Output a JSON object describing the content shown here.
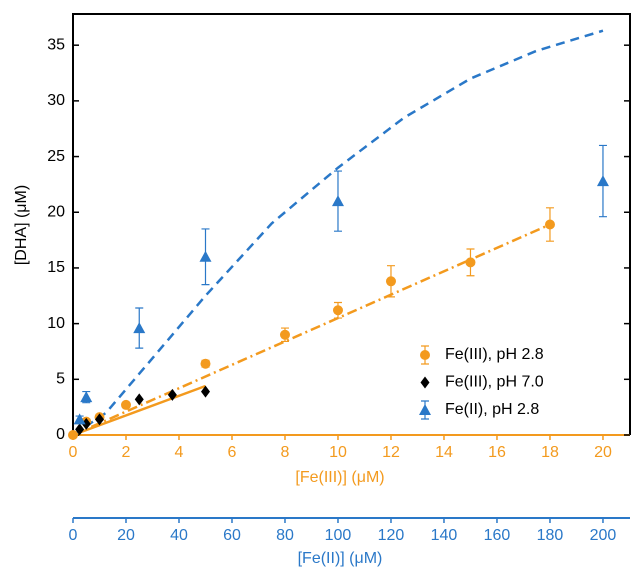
{
  "chart_data": {
    "type": "scatter",
    "ylabel": "[DHA] (μM)",
    "xlabel": "[Fe(III)] (μM)",
    "x2label": "[Fe(II)] (μM)",
    "ylim": [
      0,
      37.8
    ],
    "yticks": [
      0,
      5,
      10,
      15,
      20,
      25,
      30,
      35
    ],
    "xlim": [
      0,
      21.02
    ],
    "xticks": [
      0,
      2,
      4,
      6,
      8,
      10,
      12,
      14,
      16,
      18,
      20
    ],
    "x2lim": [
      0,
      210.2
    ],
    "x2ticks": [
      0,
      20,
      40,
      60,
      80,
      100,
      120,
      140,
      160,
      180,
      200
    ],
    "xcolor": "#f39a1e",
    "x2color": "#2a78c8",
    "legend": "lower right",
    "series": [
      {
        "name": "Fe(III), pH 2.8",
        "color": "#f39a1e",
        "marker": "circle",
        "axis": "x",
        "x": [
          0,
          0.5,
          1,
          2,
          5,
          8,
          10,
          12,
          15,
          18
        ],
        "values": [
          0,
          1.2,
          1.6,
          2.7,
          6.4,
          9.0,
          11.2,
          13.8,
          15.5,
          18.9
        ],
        "errors": [
          0.1,
          0.2,
          0.2,
          0.2,
          0.3,
          0.6,
          0.7,
          1.4,
          1.2,
          1.5
        ]
      },
      {
        "name": "Fe(III), pH 7.0",
        "color": "#000000",
        "marker": "diamond",
        "axis": "x",
        "x": [
          0.25,
          0.5,
          1,
          2.5,
          3.75,
          5
        ],
        "values": [
          0.5,
          1.0,
          1.4,
          3.2,
          3.6,
          3.9
        ]
      },
      {
        "name": "Fe(II), pH 2.8",
        "color": "#2a78c8",
        "marker": "triangle",
        "axis": "x2",
        "x": [
          2.5,
          5,
          25,
          50,
          100,
          200
        ],
        "values": [
          1.4,
          3.4,
          9.6,
          16.0,
          21.0,
          22.8
        ],
        "errors": [
          0.3,
          0.5,
          1.8,
          2.5,
          2.7,
          3.2
        ]
      }
    ],
    "fits": [
      {
        "color": "#f39a1e",
        "dash": "10 4 2 4",
        "axis": "x",
        "x": [
          0,
          18
        ],
        "values": [
          0,
          18.9
        ]
      },
      {
        "color": "#f39a1e",
        "dash": "",
        "axis": "x",
        "x": [
          0,
          5
        ],
        "values": [
          0,
          4.4
        ]
      },
      {
        "color": "#2a78c8",
        "dash": "9 6",
        "axis": "x2",
        "x": [
          0,
          12.5,
          25,
          50,
          75,
          100,
          125,
          150,
          175,
          200
        ],
        "values": [
          0,
          2,
          5.5,
          12.5,
          19,
          24,
          28.5,
          32,
          34.5,
          36.3
        ]
      }
    ]
  }
}
